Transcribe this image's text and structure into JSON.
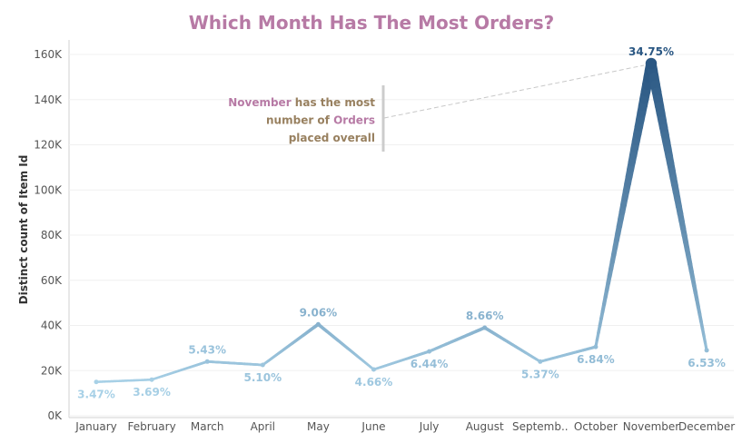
{
  "chart_data": {
    "type": "line",
    "title": "Which Month Has The Most Orders?",
    "xlabel": "",
    "ylabel": "Distinct count of Item Id",
    "ylim": [
      0,
      165000
    ],
    "y_ticks": [
      0,
      20000,
      40000,
      60000,
      80000,
      100000,
      120000,
      140000,
      160000
    ],
    "y_tick_labels": [
      "0K",
      "20K",
      "40K",
      "60K",
      "80K",
      "100K",
      "120K",
      "140K",
      "160K"
    ],
    "categories": [
      "January",
      "February",
      "March",
      "April",
      "May",
      "June",
      "July",
      "August",
      "Septemb..",
      "October",
      "November",
      "December"
    ],
    "values": [
      15000,
      16000,
      24000,
      22500,
      40500,
      20500,
      28500,
      39000,
      24000,
      30500,
      156000,
      29000
    ],
    "data_labels": [
      "3.47%",
      "3.69%",
      "5.43%",
      "5.10%",
      "9.06%",
      "4.66%",
      "6.44%",
      "8.66%",
      "5.37%",
      "6.84%",
      "34.75%",
      "6.53%"
    ],
    "grid": true,
    "colors": {
      "title": "#b77aa5",
      "low": "#a8d1e7",
      "high": "#2a5783",
      "axis": "#555555"
    },
    "annotation": {
      "lines": [
        [
          {
            "text": "November",
            "color": "#b77aa5"
          },
          {
            "text": " has the most",
            "color": "#98805f"
          }
        ],
        [
          {
            "text": "number of ",
            "color": "#98805f"
          },
          {
            "text": "Orders",
            "color": "#b77aa5"
          }
        ],
        [
          {
            "text": "placed overall",
            "color": "#98805f"
          }
        ]
      ],
      "target_category": "November"
    }
  }
}
